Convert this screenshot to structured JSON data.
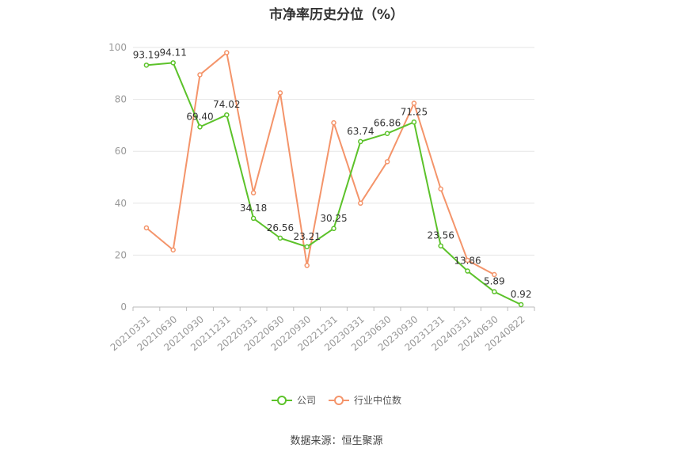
{
  "chart_data": {
    "type": "line",
    "title": "市净率历史分位（%）",
    "categories": [
      "20210331",
      "20210630",
      "20210930",
      "20211231",
      "20220331",
      "20220630",
      "20220930",
      "20221231",
      "20230331",
      "20230630",
      "20230930",
      "20231231",
      "20240331",
      "20240630",
      "20240822"
    ],
    "ylim": [
      0,
      100
    ],
    "yticks": [
      0,
      20,
      40,
      60,
      80,
      100
    ],
    "grid": true,
    "legend_position": "bottom",
    "series": [
      {
        "name": "公司",
        "color": "#5cc22a",
        "values": [
          93.19,
          94.11,
          69.4,
          74.02,
          34.18,
          26.56,
          23.21,
          30.25,
          63.74,
          66.86,
          71.25,
          23.56,
          13.86,
          5.89,
          0.92
        ],
        "labels": [
          "93.19",
          "94.11",
          "69.40",
          "74.02",
          "34.18",
          "26.56",
          "23.21",
          "30.25",
          "63.74",
          "66.86",
          "71.25",
          "23.56",
          "13.86",
          "5.89",
          "0.92"
        ]
      },
      {
        "name": "行业中位数",
        "color": "#f4946a",
        "values": [
          30.5,
          22,
          89.5,
          98,
          44,
          82.5,
          16,
          71,
          40,
          56,
          78.5,
          45.5,
          18,
          12.5,
          null
        ]
      }
    ]
  },
  "source_text": "数据来源：恒生聚源"
}
